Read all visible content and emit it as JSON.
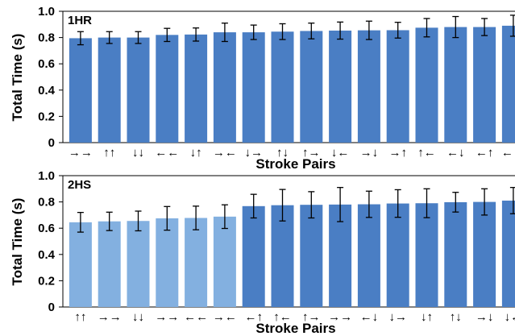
{
  "chart_data": [
    {
      "type": "bar",
      "panel_label": "1HR",
      "xlabel": "Stroke Pairs",
      "ylabel": "Total Time (s)",
      "ylim": [
        0,
        1.0
      ],
      "yticks": [
        "0",
        "0.2",
        "0.4",
        "0.6",
        "0.8",
        "1.0"
      ],
      "grid": false,
      "categories": [
        "right-right",
        "up-up",
        "down-down",
        "left-left",
        "down-up",
        "right-left",
        "down-right",
        "up-down",
        "up-right",
        "down-left",
        "right-down",
        "right-up",
        "up-left",
        "left-down",
        "left-up",
        "left-right"
      ],
      "category_glyphs": [
        [
          "→",
          "→"
        ],
        [
          "↑",
          "↑"
        ],
        [
          "↓",
          "↓"
        ],
        [
          "←",
          "←"
        ],
        [
          "↓",
          "↑"
        ],
        [
          "→",
          "←"
        ],
        [
          "↓",
          "→"
        ],
        [
          "↑",
          "↓"
        ],
        [
          "↑",
          "→"
        ],
        [
          "↓",
          "←"
        ],
        [
          "→",
          "↓"
        ],
        [
          "→",
          "↑"
        ],
        [
          "↑",
          "←"
        ],
        [
          "←",
          "↓"
        ],
        [
          "←",
          "↑"
        ],
        [
          "←",
          "→"
        ]
      ],
      "values": [
        0.795,
        0.8,
        0.8,
        0.82,
        0.823,
        0.84,
        0.84,
        0.845,
        0.85,
        0.853,
        0.855,
        0.856,
        0.875,
        0.88,
        0.88,
        0.89
      ],
      "errors": [
        0.05,
        0.045,
        0.045,
        0.05,
        0.05,
        0.07,
        0.055,
        0.06,
        0.06,
        0.065,
        0.07,
        0.06,
        0.07,
        0.08,
        0.065,
        0.08
      ],
      "bar_colors": [
        "#4a7ec4",
        "#4a7ec4",
        "#4a7ec4",
        "#4a7ec4",
        "#4a7ec4",
        "#4a7ec4",
        "#4a7ec4",
        "#4a7ec4",
        "#4a7ec4",
        "#4a7ec4",
        "#4a7ec4",
        "#4a7ec4",
        "#4a7ec4",
        "#4a7ec4",
        "#4a7ec4",
        "#4a7ec4"
      ]
    },
    {
      "type": "bar",
      "panel_label": "2HS",
      "xlabel": "Stroke Pairs",
      "ylabel": "Total Time (s)",
      "ylim": [
        0,
        1.0
      ],
      "yticks": [
        "0",
        "0.2",
        "0.4",
        "0.6",
        "0.8",
        "1.0"
      ],
      "grid": false,
      "categories": [
        "up-up",
        "right-right",
        "down-down",
        "right-right",
        "left-left",
        "right-left",
        "left-up",
        "up-left",
        "up-right",
        "right-right",
        "left-down",
        "down-right",
        "down-up",
        "up-down",
        "right-down",
        "down-left"
      ],
      "category_glyphs": [
        [
          "↑",
          "↑"
        ],
        [
          "→",
          "→"
        ],
        [
          "↓",
          "↓"
        ],
        [
          "→",
          "→"
        ],
        [
          "←",
          "←"
        ],
        [
          "→",
          "←"
        ],
        [
          "←",
          "↑"
        ],
        [
          "↑",
          "←"
        ],
        [
          "↑",
          "→"
        ],
        [
          "→",
          "→"
        ],
        [
          "←",
          "↓"
        ],
        [
          "↓",
          "→"
        ],
        [
          "↓",
          "↑"
        ],
        [
          "↑",
          "↓"
        ],
        [
          "→",
          "↓"
        ],
        [
          "↓",
          "←"
        ]
      ],
      "values": [
        0.645,
        0.652,
        0.655,
        0.675,
        0.678,
        0.688,
        0.768,
        0.775,
        0.778,
        0.78,
        0.782,
        0.788,
        0.79,
        0.798,
        0.8,
        0.81
      ],
      "errors": [
        0.075,
        0.07,
        0.075,
        0.09,
        0.09,
        0.09,
        0.09,
        0.12,
        0.1,
        0.13,
        0.1,
        0.105,
        0.11,
        0.075,
        0.1,
        0.1
      ],
      "bar_colors": [
        "#83b0e0",
        "#83b0e0",
        "#83b0e0",
        "#83b0e0",
        "#83b0e0",
        "#83b0e0",
        "#4a7ec4",
        "#4a7ec4",
        "#4a7ec4",
        "#4a7ec4",
        "#4a7ec4",
        "#4a7ec4",
        "#4a7ec4",
        "#4a7ec4",
        "#4a7ec4",
        "#4a7ec4"
      ]
    }
  ]
}
